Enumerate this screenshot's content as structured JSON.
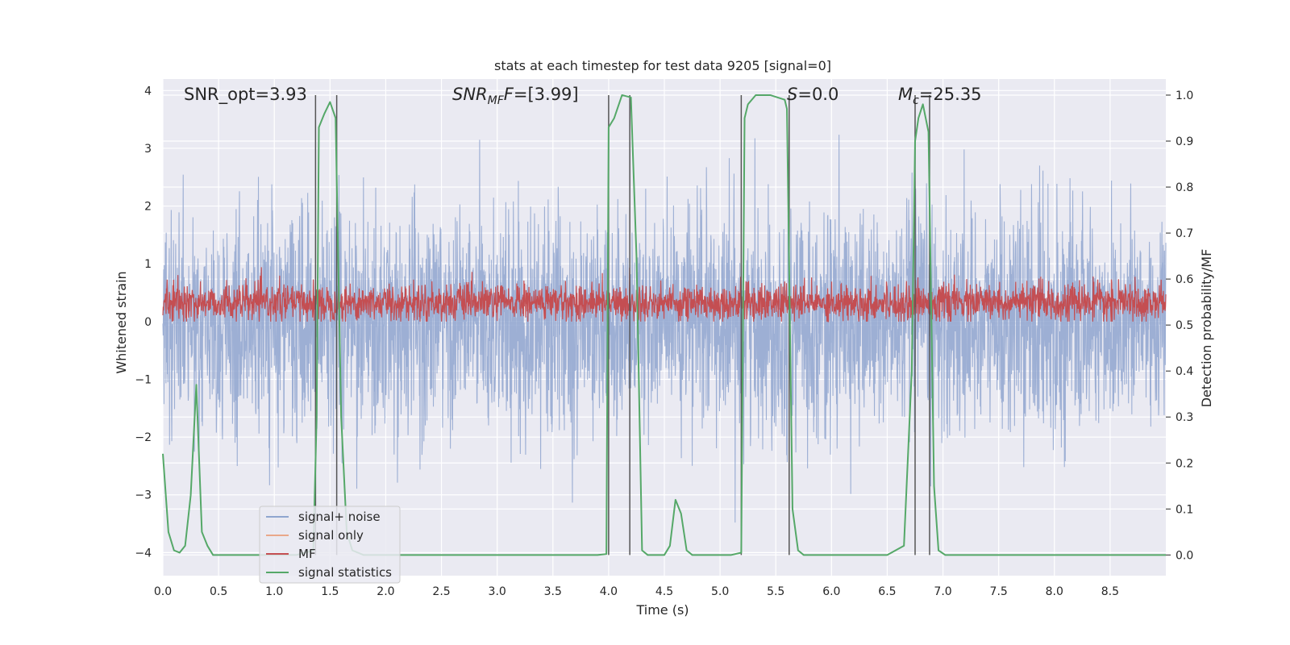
{
  "chart_data": {
    "type": "line",
    "title": "stats at each timestep for test data 9205 [signal=0]",
    "xlabel": "Time (s)",
    "ylabel": "Whitened strain",
    "y2label": "Detection probability/MF",
    "xlim": [
      0,
      9.0
    ],
    "ylim": [
      -4.4,
      4.2
    ],
    "y2lim": [
      -0.045,
      1.035
    ],
    "x_ticks": [
      "0.0",
      "0.5",
      "1.0",
      "1.5",
      "2.0",
      "2.5",
      "3.0",
      "3.5",
      "4.0",
      "4.5",
      "5.0",
      "5.5",
      "6.0",
      "6.5",
      "7.0",
      "7.5",
      "8.0",
      "8.5"
    ],
    "y_ticks": [
      "4",
      "3",
      "2",
      "1",
      "0",
      "−1",
      "−2",
      "−3",
      "−4"
    ],
    "y2_ticks": [
      "1.0",
      "0.9",
      "0.8",
      "0.7",
      "0.6",
      "0.5",
      "0.4",
      "0.3",
      "0.2",
      "0.1",
      "0.0"
    ],
    "annotations": {
      "snr_opt": "SNR_opt=3.93",
      "snr_mf_main": "SNR",
      "snr_mf_sub": "MF",
      "snr_mf_rest": "=[3.99]",
      "s_main": "S",
      "s_rest": "=0.0",
      "mc_main": "M",
      "mc_sub": "c",
      "mc_rest": "=25.35"
    },
    "legend": {
      "position": "lower-left",
      "entries": [
        {
          "label": "signal+ noise",
          "color": "#8fa5cf"
        },
        {
          "label": "signal only",
          "color": "#e9a88a"
        },
        {
          "label": "MF",
          "color": "#c44e52"
        },
        {
          "label": "signal statistics",
          "color": "#55a868"
        }
      ]
    },
    "series": [
      {
        "name": "signal+ noise",
        "color": "#8fa5cf",
        "note": "dense whitened noise, approximately Gaussian, envelope ~ -2.6 to 3.2",
        "y_range": [
          -3.8,
          3.25
        ]
      },
      {
        "name": "MF",
        "color": "#c44e52",
        "note": "matched filter output, range ~0 to 0.8 in strain units",
        "y_range": [
          0.0,
          1.0
        ]
      },
      {
        "name": "signal statistics",
        "color": "#55a868",
        "axis": "right",
        "x": [
          0.0,
          0.05,
          0.1,
          0.15,
          0.2,
          0.25,
          0.3,
          0.35,
          0.4,
          0.45,
          0.5,
          0.6,
          0.8,
          1.0,
          1.2,
          1.35,
          1.38,
          1.4,
          1.45,
          1.5,
          1.55,
          1.6,
          1.65,
          1.7,
          1.8,
          2.0,
          2.5,
          3.0,
          3.5,
          3.9,
          3.98,
          4.0,
          4.05,
          4.12,
          4.2,
          4.25,
          4.3,
          4.35,
          4.4,
          4.5,
          4.55,
          4.6,
          4.65,
          4.7,
          4.75,
          4.8,
          4.9,
          5.0,
          5.1,
          5.19,
          5.22,
          5.25,
          5.32,
          5.45,
          5.58,
          5.6,
          5.65,
          5.7,
          5.75,
          5.8,
          6.0,
          6.5,
          6.65,
          6.72,
          6.75,
          6.78,
          6.82,
          6.87,
          6.92,
          6.96,
          7.02,
          7.1,
          7.5,
          8.0,
          8.5,
          9.0
        ],
        "y": [
          0.22,
          0.05,
          0.01,
          0.005,
          0.02,
          0.13,
          0.37,
          0.05,
          0.02,
          0.0,
          0.0,
          0.0,
          0.0,
          0.0,
          0.0,
          0.01,
          0.3,
          0.93,
          0.96,
          0.985,
          0.95,
          0.3,
          0.05,
          0.01,
          0.0,
          0.0,
          0.0,
          0.0,
          0.0,
          0.0,
          0.002,
          0.93,
          0.95,
          1.0,
          0.995,
          0.65,
          0.01,
          0.0,
          0.0,
          0.0,
          0.02,
          0.12,
          0.09,
          0.01,
          0.0,
          0.0,
          0.0,
          0.0,
          0.0,
          0.005,
          0.95,
          0.98,
          1.0,
          1.0,
          0.99,
          0.97,
          0.1,
          0.01,
          0.0,
          0.0,
          0.0,
          0.0,
          0.02,
          0.4,
          0.9,
          0.95,
          0.98,
          0.92,
          0.15,
          0.01,
          0.0,
          0.0,
          0.0,
          0.0,
          0.0,
          0.0
        ]
      }
    ],
    "vertical_lines": [
      {
        "x": 1.37,
        "top": 1.0
      },
      {
        "x": 1.56,
        "top": 1.0
      },
      {
        "x": 4.0,
        "top": 1.0
      },
      {
        "x": 4.19,
        "top": 1.0
      },
      {
        "x": 5.19,
        "top": 1.0
      },
      {
        "x": 5.62,
        "top": 1.0
      },
      {
        "x": 6.75,
        "top": 1.0
      },
      {
        "x": 6.88,
        "top": 1.0
      }
    ],
    "grid": true
  }
}
